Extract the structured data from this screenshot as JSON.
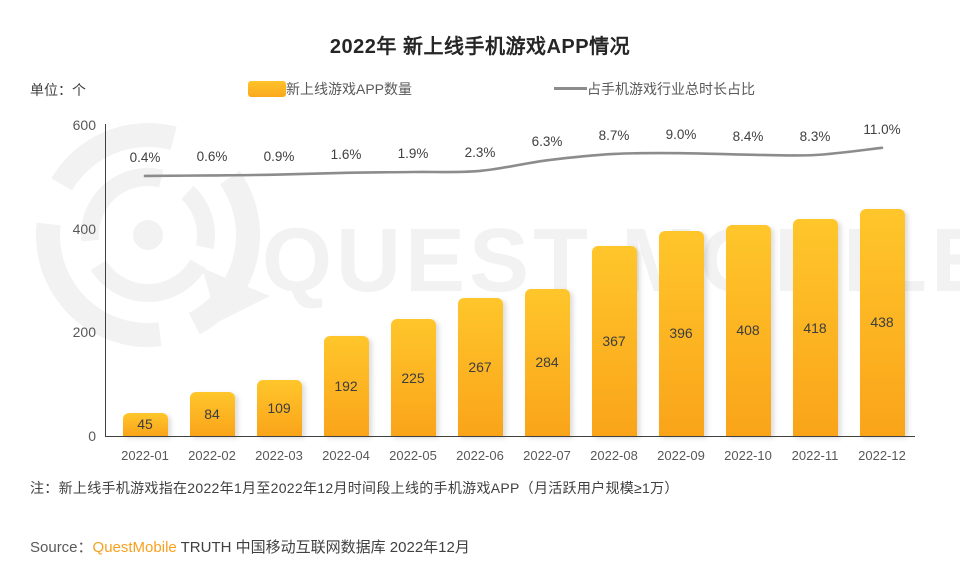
{
  "title": "2022年 新上线手机游戏APP情况",
  "unit_label": "单位：个",
  "legend": {
    "bar_label": "新上线游戏APP数量",
    "line_label": "占手机游戏行业总时长占比"
  },
  "colors": {
    "bar_top": "#ffc62b",
    "bar_bottom": "#faa41a",
    "line": "#8c8c8c",
    "brand_orange": "#f7a11e",
    "watermark": "#f2f2f2"
  },
  "watermark_text": "QUEST MOBILE",
  "chart_data": {
    "type": "bar",
    "subtype": "bar+line combo",
    "title": "2022年 新上线手机游戏APP情况",
    "categories": [
      "2022-01",
      "2022-02",
      "2022-03",
      "2022-04",
      "2022-05",
      "2022-06",
      "2022-07",
      "2022-08",
      "2022-09",
      "2022-10",
      "2022-11",
      "2022-12"
    ],
    "series": [
      {
        "name": "新上线游戏APP数量",
        "type": "bar",
        "values": [
          45,
          84,
          109,
          192,
          225,
          267,
          284,
          367,
          396,
          408,
          418,
          438
        ]
      },
      {
        "name": "占手机游戏行业总时长占比",
        "type": "line",
        "values": [
          0.4,
          0.6,
          0.9,
          1.6,
          1.9,
          2.3,
          6.3,
          8.7,
          9.0,
          8.4,
          8.3,
          11.0
        ],
        "labels": [
          "0.4%",
          "0.6%",
          "0.9%",
          "1.6%",
          "1.9%",
          "2.3%",
          "6.3%",
          "8.7%",
          "9.0%",
          "8.4%",
          "8.3%",
          "11.0%"
        ]
      }
    ],
    "ylabel": "单位：个",
    "y_axis": {
      "ticks": [
        0,
        200,
        400,
        600
      ],
      "min": 0,
      "max": 600
    },
    "grid": false,
    "legend_position": "top"
  },
  "note": "注：新上线手机游戏指在2022年1月至2022年12月时间段上线的手机游戏APP（月活跃用户规模≥1万）",
  "source": {
    "prefix": "Source：",
    "brand": "QuestMobile",
    "rest": " TRUTH 中国移动互联网数据库 2022年12月"
  }
}
